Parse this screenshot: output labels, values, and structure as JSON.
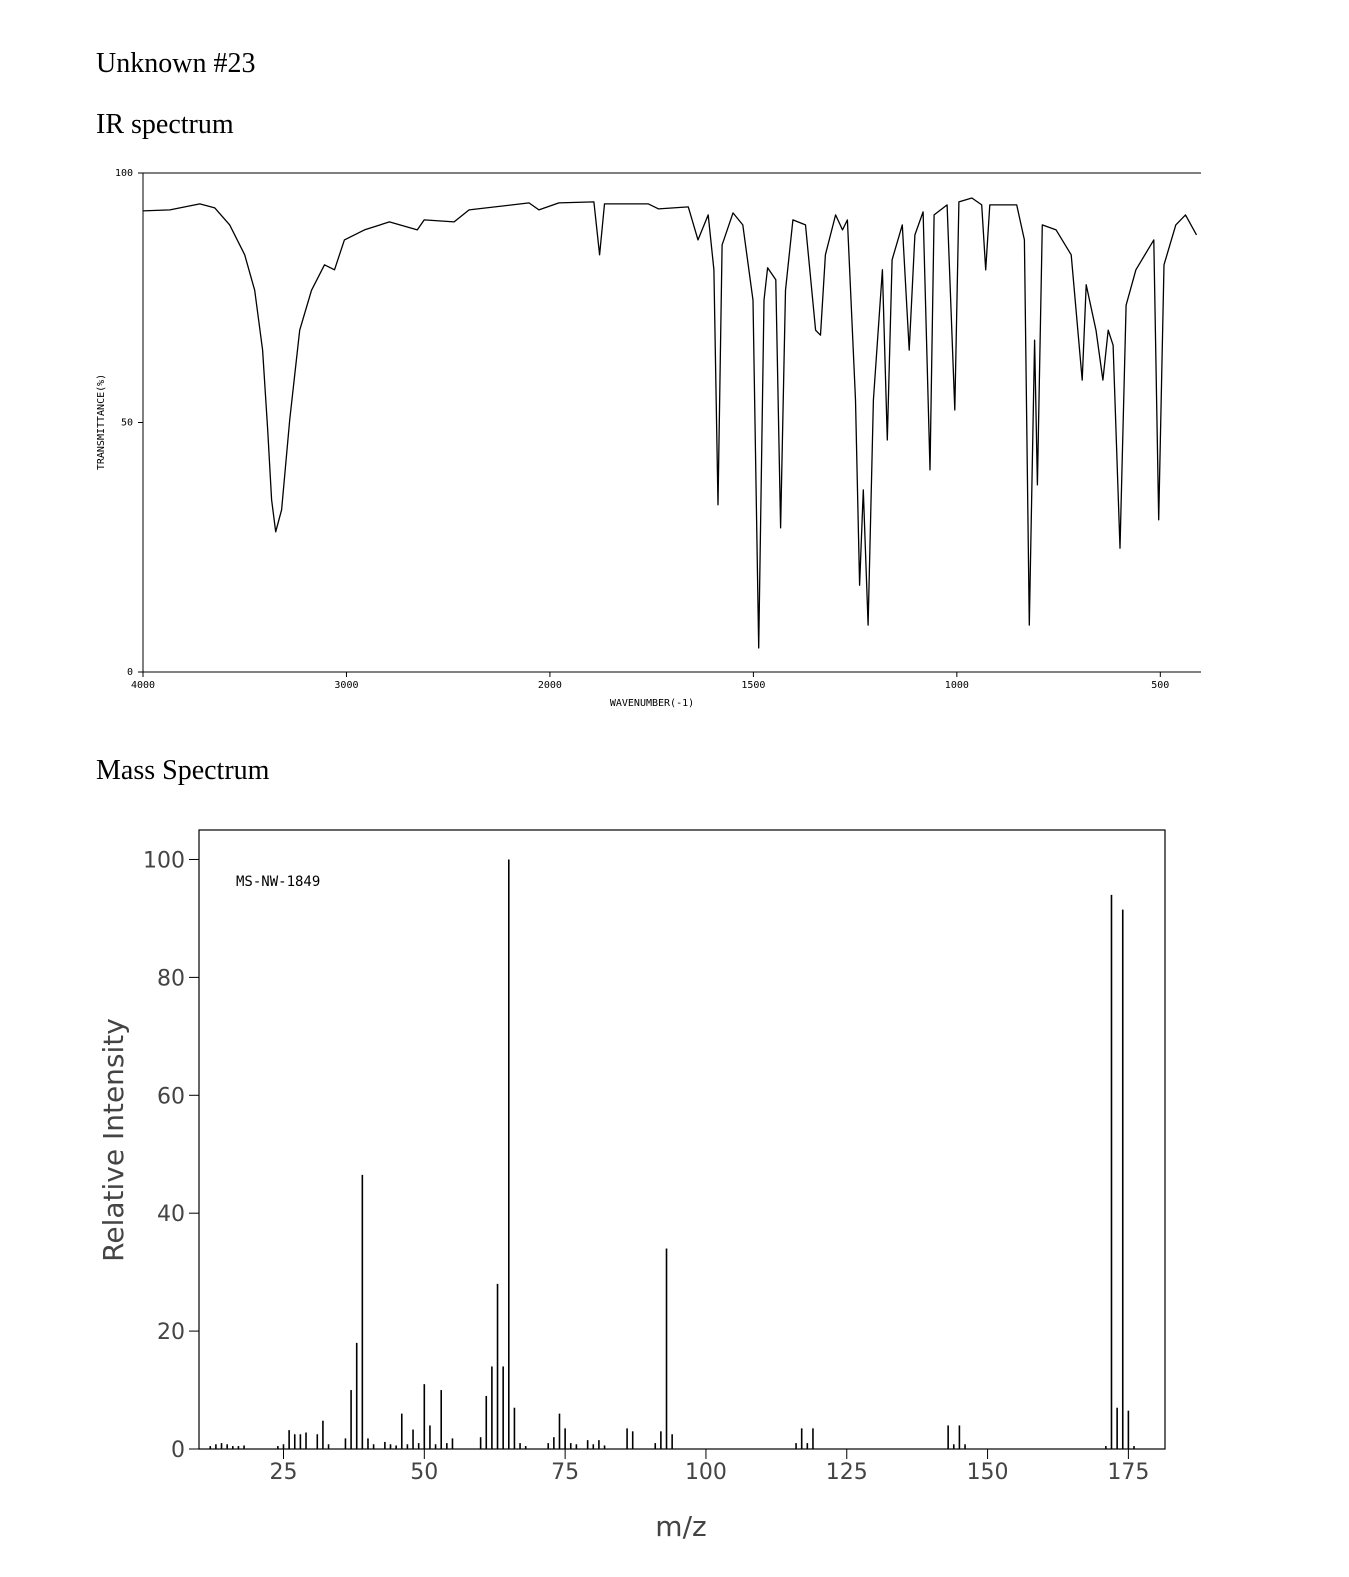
{
  "heading": "Unknown #23",
  "chart_data": [
    {
      "type": "line",
      "title": "IR spectrum",
      "xlabel": "WAVENUMBER(-1)",
      "ylabel": "TRANSMITTANCE(%)",
      "xlim": [
        4000,
        400
      ],
      "x_scale_change": 2000,
      "xticks": [
        4000,
        3000,
        2000,
        1500,
        1000,
        500
      ],
      "ylim": [
        0,
        100
      ],
      "yticks": [
        0,
        50,
        100
      ],
      "color": "#000000",
      "x": [
        4000,
        3868,
        3721,
        3647,
        3574,
        3500,
        3451,
        3412,
        3387,
        3368,
        3348,
        3319,
        3279,
        3230,
        3172,
        3108,
        3059,
        3010,
        2912,
        2789,
        2652,
        2618,
        2471,
        2397,
        2103,
        2054,
        1978,
        1892,
        1878,
        1866,
        1758,
        1733,
        1660,
        1636,
        1611,
        1597,
        1587,
        1577,
        1550,
        1526,
        1501,
        1487,
        1474,
        1465,
        1445,
        1433,
        1421,
        1403,
        1372,
        1347,
        1335,
        1323,
        1298,
        1281,
        1269,
        1249,
        1239,
        1230,
        1218,
        1205,
        1183,
        1171,
        1159,
        1134,
        1117,
        1103,
        1083,
        1066,
        1056,
        1024,
        1005,
        995,
        963,
        939,
        929,
        919,
        853,
        834,
        822,
        809,
        802,
        790,
        756,
        719,
        692,
        682,
        658,
        641,
        628,
        616,
        599,
        584,
        560,
        516,
        504,
        491,
        462,
        438,
        411
      ],
      "values": [
        92.4,
        92.6,
        93.8,
        93.0,
        89.6,
        83.6,
        76.5,
        64.5,
        48.5,
        34.5,
        28.1,
        32.5,
        50.5,
        68.5,
        76.5,
        81.6,
        80.6,
        86.6,
        88.6,
        90.2,
        88.6,
        90.6,
        90.2,
        92.6,
        94.0,
        92.6,
        94.0,
        94.2,
        83.6,
        93.8,
        93.8,
        92.8,
        93.2,
        86.6,
        91.6,
        80.6,
        33.5,
        85.6,
        92.0,
        89.6,
        74.5,
        4.8,
        74.5,
        81.0,
        78.6,
        28.9,
        76.5,
        90.6,
        89.6,
        68.5,
        67.5,
        83.6,
        91.6,
        88.6,
        90.6,
        54.5,
        17.4,
        36.5,
        9.4,
        54.5,
        80.6,
        46.5,
        82.6,
        89.6,
        64.5,
        87.6,
        92.2,
        40.5,
        91.6,
        93.6,
        52.5,
        94.2,
        95.0,
        93.6,
        80.6,
        93.6,
        93.6,
        86.6,
        9.4,
        66.5,
        37.5,
        89.6,
        88.6,
        83.6,
        58.5,
        77.6,
        68.5,
        58.5,
        68.5,
        65.5,
        24.8,
        73.5,
        80.6,
        86.6,
        30.5,
        81.6,
        89.6,
        91.6,
        87.6
      ]
    },
    {
      "type": "bar",
      "title": "Mass Spectrum",
      "xlabel": "m/z",
      "ylabel": "Relative Intensity",
      "annotation": "MS-NW-1849",
      "xlim": [
        10,
        181.5
      ],
      "xticks": [
        25,
        50,
        75,
        100,
        125,
        150,
        175
      ],
      "ylim": [
        0,
        105
      ],
      "yticks": [
        0,
        20,
        40,
        60,
        80,
        100
      ],
      "color": "#000000",
      "x": [
        12,
        13,
        14,
        15,
        16,
        17,
        18,
        24,
        25,
        26,
        27,
        28,
        29,
        31,
        32,
        33,
        36,
        37,
        38,
        39,
        40,
        41,
        43,
        44,
        45,
        46,
        47,
        48,
        49,
        50,
        51,
        52,
        53,
        54,
        55,
        60,
        61,
        62,
        63,
        64,
        65,
        66,
        67,
        68,
        72,
        73,
        74,
        75,
        76,
        77,
        79,
        80,
        81,
        82,
        86,
        87,
        91,
        92,
        93,
        94,
        116,
        117,
        118,
        119,
        143,
        144,
        145,
        146,
        171,
        172,
        173,
        174,
        175,
        176
      ],
      "values": [
        0.5,
        0.8,
        1,
        0.8,
        0.5,
        0.5,
        0.6,
        0.5,
        0.8,
        3.2,
        2.5,
        2.5,
        2.8,
        2.5,
        4.8,
        0.8,
        1.8,
        10,
        18,
        46.5,
        1.8,
        0.8,
        1.2,
        0.8,
        0.6,
        6,
        0.8,
        3.3,
        1,
        11,
        4,
        0.8,
        10,
        1,
        1.8,
        2,
        9,
        14,
        28,
        14,
        100,
        7,
        1,
        0.5,
        1,
        2,
        6,
        3.5,
        1,
        0.8,
        1.5,
        0.8,
        1.5,
        0.6,
        3.5,
        3,
        1,
        3,
        34,
        2.5,
        1,
        3.5,
        1,
        3.5,
        4,
        0.8,
        4,
        0.8,
        0.5,
        94,
        7,
        91.5,
        6.5,
        0.5
      ]
    }
  ]
}
